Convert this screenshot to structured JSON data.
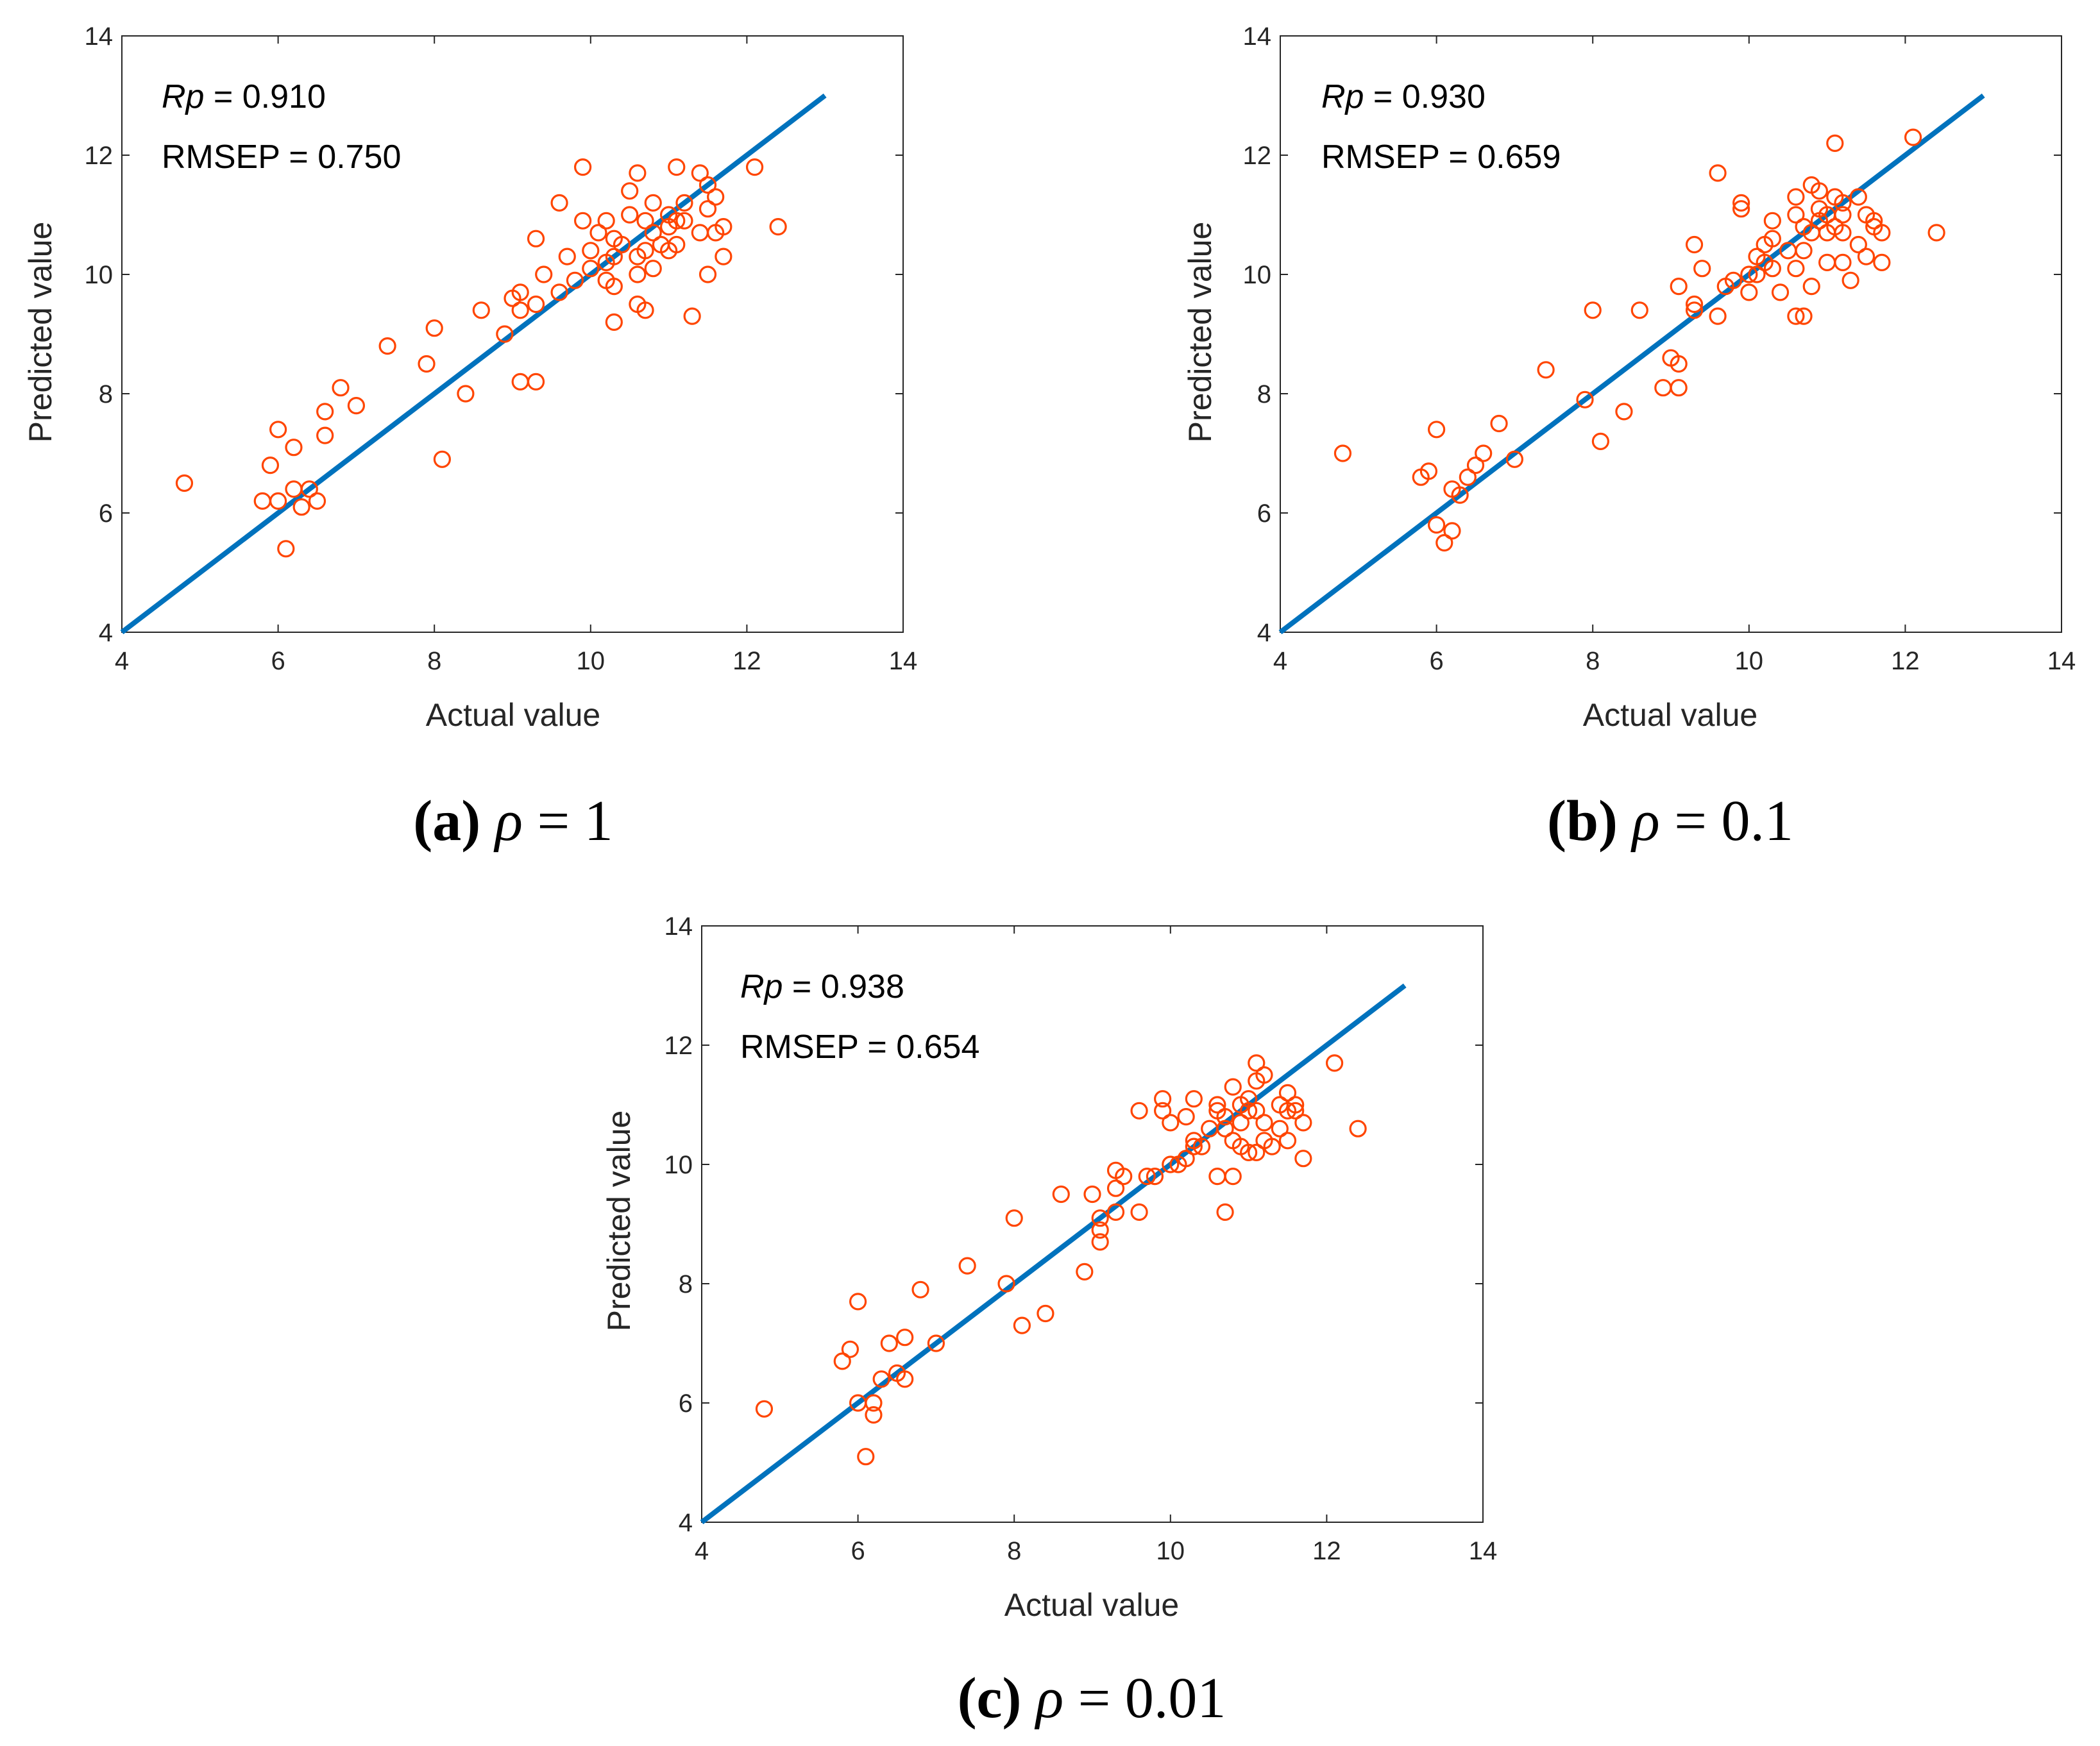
{
  "colors": {
    "fit_line": "#0072BD",
    "marker": "#FF4500",
    "axis": "#262626"
  },
  "chart_data": [
    {
      "type": "scatter",
      "panel": "a",
      "xlabel": "Actual value",
      "ylabel": "Predicted value",
      "xlim": [
        4,
        14
      ],
      "ylim": [
        4,
        14
      ],
      "xticks": [
        4,
        6,
        8,
        10,
        12,
        14
      ],
      "yticks": [
        4,
        6,
        8,
        10,
        12,
        14
      ],
      "fit_line": {
        "x": [
          4,
          13
        ],
        "y": [
          4,
          13
        ]
      },
      "annotations": {
        "rp_label": "Rp",
        "rp_value": " = 0.910",
        "rmsep": "RMSEP = 0.750"
      },
      "caption": {
        "letter": "(a)",
        "symbol": "ρ",
        "value": " = 1"
      },
      "points": [
        [
          4.8,
          6.5
        ],
        [
          5.8,
          6.2
        ],
        [
          5.9,
          6.8
        ],
        [
          6.0,
          7.4
        ],
        [
          6.0,
          6.2
        ],
        [
          6.1,
          5.4
        ],
        [
          6.2,
          7.1
        ],
        [
          6.2,
          6.4
        ],
        [
          6.3,
          6.1
        ],
        [
          6.4,
          6.4
        ],
        [
          6.5,
          6.2
        ],
        [
          6.6,
          7.3
        ],
        [
          6.6,
          7.7
        ],
        [
          6.8,
          8.1
        ],
        [
          7.0,
          7.8
        ],
        [
          7.4,
          8.8
        ],
        [
          7.9,
          8.5
        ],
        [
          8.0,
          9.1
        ],
        [
          8.1,
          6.9
        ],
        [
          8.4,
          8.0
        ],
        [
          8.6,
          9.4
        ],
        [
          8.9,
          9.0
        ],
        [
          9.0,
          9.6
        ],
        [
          9.1,
          8.2
        ],
        [
          9.1,
          9.4
        ],
        [
          9.1,
          9.7
        ],
        [
          9.3,
          9.5
        ],
        [
          9.3,
          10.6
        ],
        [
          9.3,
          8.2
        ],
        [
          9.4,
          10.0
        ],
        [
          9.6,
          9.7
        ],
        [
          9.6,
          11.2
        ],
        [
          9.7,
          10.3
        ],
        [
          9.8,
          9.9
        ],
        [
          9.9,
          11.8
        ],
        [
          9.9,
          10.9
        ],
        [
          10.0,
          10.4
        ],
        [
          10.0,
          10.1
        ],
        [
          10.1,
          10.7
        ],
        [
          10.2,
          10.9
        ],
        [
          10.2,
          10.2
        ],
        [
          10.2,
          9.9
        ],
        [
          10.3,
          10.6
        ],
        [
          10.3,
          10.3
        ],
        [
          10.3,
          9.8
        ],
        [
          10.3,
          9.2
        ],
        [
          10.4,
          10.5
        ],
        [
          10.5,
          11.0
        ],
        [
          10.5,
          11.4
        ],
        [
          10.6,
          11.7
        ],
        [
          10.6,
          10.3
        ],
        [
          10.6,
          10.0
        ],
        [
          10.6,
          9.5
        ],
        [
          10.7,
          10.9
        ],
        [
          10.7,
          10.4
        ],
        [
          10.7,
          9.4
        ],
        [
          10.8,
          11.2
        ],
        [
          10.8,
          10.7
        ],
        [
          10.8,
          10.1
        ],
        [
          10.9,
          10.5
        ],
        [
          11.0,
          10.8
        ],
        [
          11.0,
          10.4
        ],
        [
          11.0,
          11.0
        ],
        [
          11.1,
          11.8
        ],
        [
          11.1,
          10.9
        ],
        [
          11.1,
          10.5
        ],
        [
          11.2,
          11.2
        ],
        [
          11.2,
          10.9
        ],
        [
          11.3,
          9.3
        ],
        [
          11.4,
          11.7
        ],
        [
          11.4,
          10.7
        ],
        [
          11.5,
          11.5
        ],
        [
          11.5,
          10.0
        ],
        [
          11.5,
          11.1
        ],
        [
          11.6,
          11.3
        ],
        [
          11.6,
          10.7
        ],
        [
          11.7,
          10.8
        ],
        [
          11.7,
          10.3
        ],
        [
          12.1,
          11.8
        ],
        [
          12.4,
          10.8
        ]
      ]
    },
    {
      "type": "scatter",
      "panel": "b",
      "xlabel": "Actual value",
      "ylabel": "Predicted value",
      "xlim": [
        4,
        14
      ],
      "ylim": [
        4,
        14
      ],
      "xticks": [
        4,
        6,
        8,
        10,
        12,
        14
      ],
      "yticks": [
        4,
        6,
        8,
        10,
        12,
        14
      ],
      "fit_line": {
        "x": [
          4,
          13
        ],
        "y": [
          4,
          13
        ]
      },
      "annotations": {
        "rp_label": "Rp",
        "rp_value": " = 0.930",
        "rmsep": "RMSEP = 0.659"
      },
      "caption": {
        "letter": "(b)",
        "symbol": "ρ",
        "value": " = 0.1"
      },
      "points": [
        [
          4.8,
          7.0
        ],
        [
          5.8,
          6.6
        ],
        [
          5.9,
          6.7
        ],
        [
          6.0,
          7.4
        ],
        [
          6.0,
          5.8
        ],
        [
          6.1,
          5.5
        ],
        [
          6.2,
          6.4
        ],
        [
          6.2,
          5.7
        ],
        [
          6.3,
          6.3
        ],
        [
          6.4,
          6.6
        ],
        [
          6.5,
          6.8
        ],
        [
          6.6,
          7.0
        ],
        [
          6.8,
          7.5
        ],
        [
          7.0,
          6.9
        ],
        [
          7.4,
          8.4
        ],
        [
          7.9,
          7.9
        ],
        [
          8.0,
          9.4
        ],
        [
          8.1,
          7.2
        ],
        [
          8.4,
          7.7
        ],
        [
          8.6,
          9.4
        ],
        [
          8.9,
          8.1
        ],
        [
          9.0,
          8.6
        ],
        [
          9.1,
          8.5
        ],
        [
          9.1,
          8.1
        ],
        [
          9.1,
          9.8
        ],
        [
          9.3,
          9.4
        ],
        [
          9.3,
          9.5
        ],
        [
          9.3,
          10.5
        ],
        [
          9.4,
          10.1
        ],
        [
          9.6,
          9.3
        ],
        [
          9.6,
          11.7
        ],
        [
          9.7,
          9.8
        ],
        [
          9.8,
          9.9
        ],
        [
          9.9,
          11.2
        ],
        [
          9.9,
          11.1
        ],
        [
          10.0,
          9.7
        ],
        [
          10.0,
          10.0
        ],
        [
          10.1,
          10.3
        ],
        [
          10.1,
          10.0
        ],
        [
          10.2,
          10.5
        ],
        [
          10.2,
          10.2
        ],
        [
          10.3,
          10.6
        ],
        [
          10.3,
          10.9
        ],
        [
          10.3,
          10.1
        ],
        [
          10.4,
          9.7
        ],
        [
          10.5,
          10.4
        ],
        [
          10.6,
          11.3
        ],
        [
          10.6,
          11.0
        ],
        [
          10.6,
          10.1
        ],
        [
          10.6,
          9.3
        ],
        [
          10.7,
          9.3
        ],
        [
          10.7,
          10.4
        ],
        [
          10.7,
          10.8
        ],
        [
          10.8,
          11.5
        ],
        [
          10.8,
          10.7
        ],
        [
          10.8,
          9.8
        ],
        [
          10.9,
          11.4
        ],
        [
          10.9,
          11.1
        ],
        [
          10.9,
          10.9
        ],
        [
          11.0,
          10.7
        ],
        [
          11.0,
          10.2
        ],
        [
          11.1,
          12.2
        ],
        [
          11.1,
          11.3
        ],
        [
          11.1,
          10.8
        ],
        [
          11.2,
          11.0
        ],
        [
          11.2,
          10.7
        ],
        [
          11.2,
          10.2
        ],
        [
          11.3,
          9.9
        ],
        [
          11.4,
          11.3
        ],
        [
          11.4,
          10.5
        ],
        [
          11.5,
          11.0
        ],
        [
          11.5,
          10.3
        ],
        [
          11.6,
          10.8
        ],
        [
          11.6,
          10.9
        ],
        [
          11.7,
          10.7
        ],
        [
          11.7,
          10.2
        ],
        [
          12.1,
          12.3
        ],
        [
          12.4,
          10.7
        ],
        [
          11.0,
          11.0
        ],
        [
          11.2,
          11.2
        ]
      ]
    },
    {
      "type": "scatter",
      "panel": "c",
      "xlabel": "Actual value",
      "ylabel": "Predicted value",
      "xlim": [
        4,
        14
      ],
      "ylim": [
        4,
        14
      ],
      "xticks": [
        4,
        6,
        8,
        10,
        12,
        14
      ],
      "yticks": [
        4,
        6,
        8,
        10,
        12,
        14
      ],
      "fit_line": {
        "x": [
          4,
          13
        ],
        "y": [
          4,
          13
        ]
      },
      "annotations": {
        "rp_label": "Rp",
        "rp_value": " = 0.938",
        "rmsep": "RMSEP = 0.654"
      },
      "caption": {
        "letter": "(c)",
        "symbol": "ρ",
        "value": " = 0.01"
      },
      "points": [
        [
          4.8,
          5.9
        ],
        [
          5.8,
          6.7
        ],
        [
          5.9,
          6.9
        ],
        [
          6.0,
          7.7
        ],
        [
          6.0,
          6.0
        ],
        [
          6.1,
          5.1
        ],
        [
          6.2,
          6.0
        ],
        [
          6.2,
          5.8
        ],
        [
          6.3,
          6.4
        ],
        [
          6.4,
          7.0
        ],
        [
          6.5,
          6.5
        ],
        [
          6.6,
          7.1
        ],
        [
          6.6,
          6.4
        ],
        [
          6.8,
          7.9
        ],
        [
          7.0,
          7.0
        ],
        [
          7.4,
          8.3
        ],
        [
          7.9,
          8.0
        ],
        [
          8.0,
          9.1
        ],
        [
          8.1,
          7.3
        ],
        [
          8.4,
          7.5
        ],
        [
          8.6,
          9.5
        ],
        [
          8.9,
          8.2
        ],
        [
          9.0,
          9.5
        ],
        [
          9.1,
          8.7
        ],
        [
          9.1,
          8.9
        ],
        [
          9.1,
          9.1
        ],
        [
          9.3,
          9.2
        ],
        [
          9.3,
          9.6
        ],
        [
          9.3,
          9.9
        ],
        [
          9.4,
          9.8
        ],
        [
          9.6,
          10.9
        ],
        [
          9.6,
          9.2
        ],
        [
          9.7,
          9.8
        ],
        [
          9.8,
          9.8
        ],
        [
          9.9,
          11.1
        ],
        [
          9.9,
          10.9
        ],
        [
          10.0,
          10.0
        ],
        [
          10.0,
          10.7
        ],
        [
          10.1,
          10.0
        ],
        [
          10.2,
          10.1
        ],
        [
          10.2,
          10.8
        ],
        [
          10.3,
          10.3
        ],
        [
          10.3,
          10.4
        ],
        [
          10.3,
          11.1
        ],
        [
          10.4,
          10.3
        ],
        [
          10.5,
          10.6
        ],
        [
          10.6,
          11.0
        ],
        [
          10.6,
          10.9
        ],
        [
          10.6,
          9.8
        ],
        [
          10.7,
          10.8
        ],
        [
          10.7,
          10.6
        ],
        [
          10.7,
          9.2
        ],
        [
          10.8,
          11.3
        ],
        [
          10.8,
          10.4
        ],
        [
          10.8,
          9.8
        ],
        [
          10.9,
          11.0
        ],
        [
          10.9,
          10.7
        ],
        [
          10.9,
          10.3
        ],
        [
          11.0,
          10.9
        ],
        [
          11.0,
          11.1
        ],
        [
          11.0,
          10.2
        ],
        [
          11.1,
          11.7
        ],
        [
          11.1,
          11.4
        ],
        [
          11.1,
          10.9
        ],
        [
          11.1,
          10.2
        ],
        [
          11.2,
          11.5
        ],
        [
          11.2,
          10.7
        ],
        [
          11.2,
          10.4
        ],
        [
          11.3,
          10.3
        ],
        [
          11.4,
          11.0
        ],
        [
          11.4,
          10.6
        ],
        [
          11.5,
          11.2
        ],
        [
          11.5,
          10.9
        ],
        [
          11.5,
          10.4
        ],
        [
          11.6,
          11.0
        ],
        [
          11.6,
          10.9
        ],
        [
          11.7,
          10.7
        ],
        [
          11.7,
          10.1
        ],
        [
          12.1,
          11.7
        ],
        [
          12.4,
          10.6
        ]
      ]
    }
  ]
}
